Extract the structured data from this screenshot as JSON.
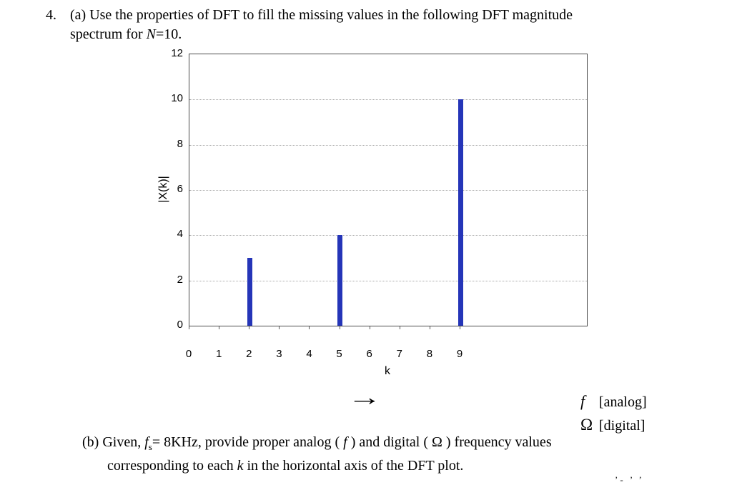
{
  "page": {
    "problem4": {
      "number": "4.",
      "part_a_line1": "(a) Use the properties of DFT to fill the missing values in the following DFT magnitude",
      "part_a_line2_prefix": "spectrum for ",
      "part_a_N": "N",
      "part_a_line2_suffix": "=10."
    },
    "arrow": "→",
    "legend": {
      "f_symbol": "f",
      "f_label": "[analog]",
      "omega_symbol": "Ω",
      "omega_label": "[digital]"
    },
    "part_b": {
      "prefix": "(b) Given, ",
      "fs_symbol": "f",
      "fs_sub": "s",
      "mid1": "= 8KHz,  provide proper analog ( ",
      "f_symbol": "f",
      "mid2": " ) and digital ( ",
      "omega_symbol": "Ω",
      "suffix": " ) frequency values",
      "line2_prefix": "corresponding to each ",
      "line2_k": "k",
      "line2_suffix": " in the horizontal axis of the DFT plot."
    },
    "corner_fragment": "’-  ’ ’"
  },
  "chart_data": {
    "type": "bar",
    "subtype": "stem",
    "title": "",
    "xlabel": "k",
    "ylabel": "|X(k)|",
    "xlim": [
      0,
      13.2
    ],
    "ylim": [
      0,
      12
    ],
    "x_ticks": [
      0,
      1,
      2,
      3,
      4,
      5,
      6,
      7,
      8,
      9
    ],
    "y_ticks": [
      0,
      2,
      4,
      6,
      8,
      10,
      12
    ],
    "gridlines_y": [
      2,
      4,
      6,
      8,
      10
    ],
    "grid_style": "dotted",
    "legend_position": "none",
    "stems": [
      {
        "k": 2,
        "value": 3
      },
      {
        "k": 5,
        "value": 4
      },
      {
        "k": 9,
        "value": 10
      }
    ],
    "bar_color": "#2535b8"
  }
}
